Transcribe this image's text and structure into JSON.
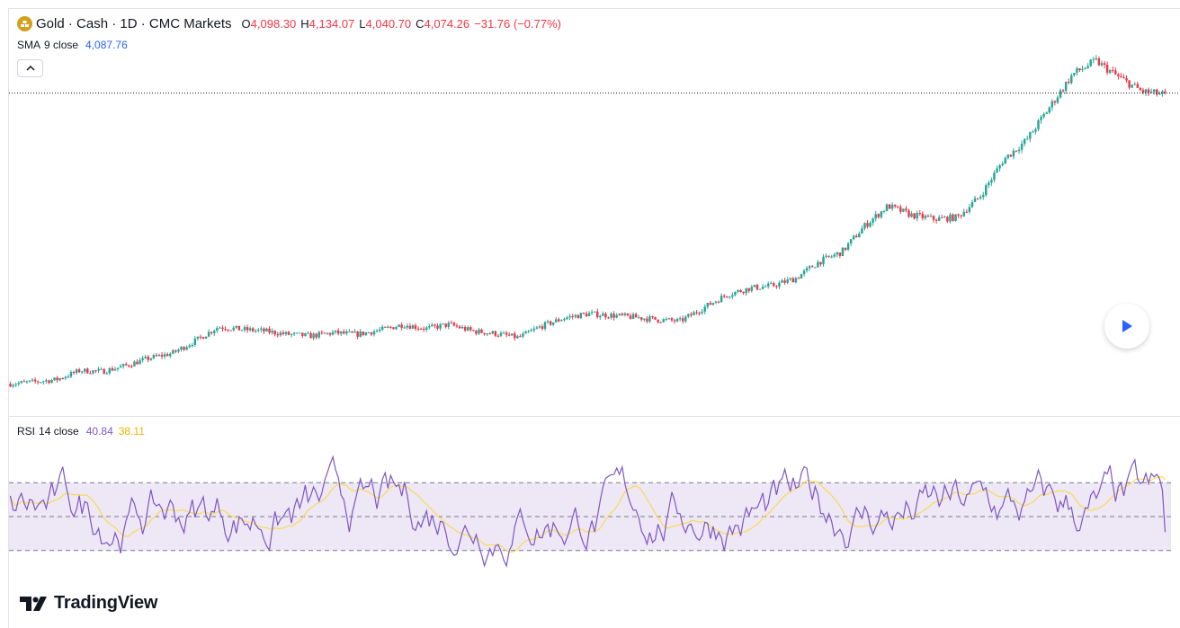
{
  "header": {
    "symbol_title": "Gold · Cash · 1D · CMC Markets",
    "ohlc": [
      {
        "key": "O",
        "value": "4,098.30"
      },
      {
        "key": "H",
        "value": "4,134.07"
      },
      {
        "key": "L",
        "value": "4,040.70"
      },
      {
        "key": "C",
        "value": "4,074.26"
      }
    ],
    "change": "−31.76 (−0.77%)"
  },
  "sma": {
    "name": "SMA",
    "params": "9 close",
    "value": "4,087.76"
  },
  "rsi": {
    "name": "RSI",
    "params": "14 close",
    "value": "40.84",
    "ma_value": "38.11"
  },
  "brand": {
    "name": "TradingView"
  },
  "colors": {
    "up": "#26a69a",
    "down": "#f23645",
    "sma": "#2962ff",
    "rsi": "#7e57c2",
    "rsi_ma": "#fdd835",
    "band": "#ede7f6"
  },
  "icons": [
    "gold-icon",
    "chevron-up-icon",
    "play-icon",
    "tradingview-logo-icon"
  ],
  "chart_data": [
    {
      "type": "line",
      "title": "Gold · Cash · 1D · CMC Markets",
      "note_series": "closing-price trend (candlesticks rendered as trend)",
      "series": [
        {
          "name": "Gold · Cash",
          "values": [
            2320,
            2331,
            2345,
            2400,
            2395,
            2430,
            2475,
            2505,
            2580,
            2666,
            2650,
            2640,
            2620,
            2610,
            2630,
            2620,
            2645,
            2680,
            2655,
            2680,
            2640,
            2625,
            2600,
            2670,
            2720,
            2745,
            2735,
            2725,
            2710,
            2700,
            2780,
            2860,
            2900,
            2915,
            2960,
            3060,
            3120,
            3280,
            3400,
            3345,
            3320,
            3330,
            3460,
            3680,
            3800,
            4000,
            4200,
            4280,
            4180,
            4095,
            4074
          ]
        }
      ]
    },
    {
      "type": "line",
      "title": "RSI 14 close",
      "series": [
        {
          "name": "RSI",
          "last": 40.84
        },
        {
          "name": "RSI-based MA",
          "last": 38.11
        }
      ],
      "bands": [
        30,
        50,
        70
      ]
    }
  ]
}
